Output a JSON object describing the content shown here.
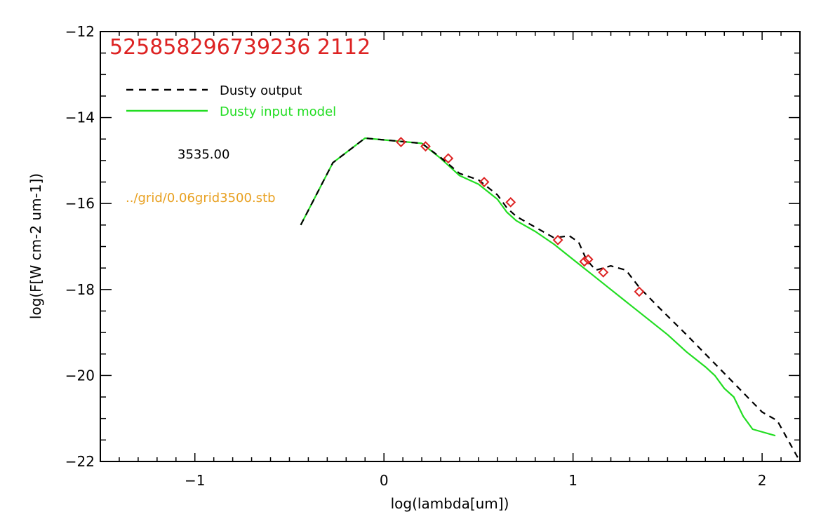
{
  "chart_data": {
    "type": "line",
    "title": "525858296739236 2112",
    "xlabel": "log(lambda[um])",
    "ylabel": "log(F[W cm-2 um-1])",
    "xlim": [
      -1.5,
      2.2
    ],
    "ylim": [
      -22,
      -12
    ],
    "x_ticks": [
      -1,
      0,
      1,
      2
    ],
    "x_tick_labels": [
      "−1",
      "0",
      "1",
      "2"
    ],
    "y_ticks": [
      -22,
      -20,
      -18,
      -16,
      -14,
      -12
    ],
    "y_tick_labels": [
      "−22",
      "−20",
      "−18",
      "−16",
      "−14",
      "−12"
    ],
    "grid": false,
    "legend_position": "top-left",
    "annotations": {
      "temperature": "3535.00",
      "model_file": "../grid/0.06grid3500.stb"
    },
    "colors": {
      "title": "#dd2222",
      "output": "#000000",
      "input": "#22dd22",
      "observed": "#dd2222",
      "file": "#e8a020"
    },
    "series": [
      {
        "name": "Dusty input model",
        "style": "solid",
        "points": [
          [
            -0.44,
            -16.5
          ],
          [
            -0.27,
            -15.05
          ],
          [
            -0.1,
            -14.48
          ],
          [
            0.2,
            -14.6
          ],
          [
            0.3,
            -14.95
          ],
          [
            0.4,
            -15.35
          ],
          [
            0.5,
            -15.55
          ],
          [
            0.6,
            -15.9
          ],
          [
            0.65,
            -16.2
          ],
          [
            0.7,
            -16.4
          ],
          [
            0.8,
            -16.65
          ],
          [
            0.9,
            -16.95
          ],
          [
            1.0,
            -17.3
          ],
          [
            1.1,
            -17.65
          ],
          [
            1.2,
            -18.0
          ],
          [
            1.3,
            -18.35
          ],
          [
            1.4,
            -18.7
          ],
          [
            1.5,
            -19.05
          ],
          [
            1.6,
            -19.45
          ],
          [
            1.7,
            -19.8
          ],
          [
            1.75,
            -20.0
          ],
          [
            1.8,
            -20.3
          ],
          [
            1.85,
            -20.5
          ],
          [
            1.9,
            -20.95
          ],
          [
            1.95,
            -21.25
          ],
          [
            2.07,
            -21.4
          ]
        ]
      },
      {
        "name": "Dusty output",
        "style": "dashed",
        "points": [
          [
            -0.44,
            -16.5
          ],
          [
            -0.27,
            -15.05
          ],
          [
            -0.1,
            -14.48
          ],
          [
            0.2,
            -14.6
          ],
          [
            0.3,
            -14.93
          ],
          [
            0.4,
            -15.3
          ],
          [
            0.5,
            -15.45
          ],
          [
            0.6,
            -15.8
          ],
          [
            0.65,
            -16.1
          ],
          [
            0.7,
            -16.3
          ],
          [
            0.8,
            -16.55
          ],
          [
            0.9,
            -16.8
          ],
          [
            0.98,
            -16.75
          ],
          [
            1.03,
            -16.9
          ],
          [
            1.07,
            -17.3
          ],
          [
            1.12,
            -17.55
          ],
          [
            1.2,
            -17.45
          ],
          [
            1.28,
            -17.55
          ],
          [
            1.35,
            -17.95
          ],
          [
            1.45,
            -18.4
          ],
          [
            1.6,
            -19.05
          ],
          [
            1.8,
            -19.95
          ],
          [
            2.0,
            -20.85
          ],
          [
            2.08,
            -21.05
          ],
          [
            2.2,
            -22.0
          ]
        ]
      }
    ],
    "observed_points": {
      "marker": "diamond",
      "x": [
        0.09,
        0.22,
        0.34,
        0.53,
        0.67,
        0.92,
        1.06,
        1.08,
        1.16,
        1.35
      ],
      "y": [
        -14.57,
        -14.67,
        -14.95,
        -15.5,
        -15.97,
        -16.85,
        -17.35,
        -17.3,
        -17.6,
        -18.05
      ]
    }
  }
}
